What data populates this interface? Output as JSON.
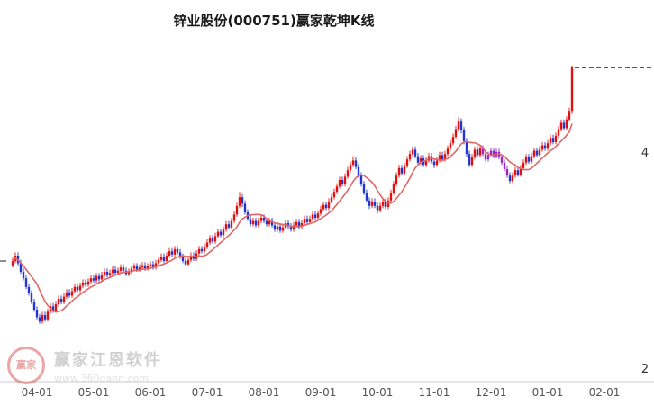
{
  "title": "锌业股份(000751)赢家乾坤K线",
  "watermark": {
    "brand": "赢家江恩软件",
    "url": "www.360gann.com",
    "logo_text": "赢家"
  },
  "colors": {
    "up": "#e01010",
    "down": "#2335cd",
    "purple": "#9428c4",
    "ma": "#e06666",
    "dashed": "#222222",
    "axis_text": "#555555",
    "axis_line": "#cccccc",
    "y_label_text": "#333333"
  },
  "chart_data": {
    "type": "candlestick",
    "stock_name": "锌业股份",
    "symbol": "000751",
    "title": "锌业股份(000751)赢家乾坤K线",
    "ylim": [
      2,
      4.9
    ],
    "price_per_unit_note": "right axis labels 4 and 2; left tick at 3",
    "left_tick_price": 3,
    "ma_period": 10,
    "purple_range": [
      174,
      183
    ],
    "x_labels": [
      "04-01",
      "05-01",
      "06-01",
      "07-01",
      "08-01",
      "09-01",
      "10-01",
      "11-01",
      "12-01",
      "01-01",
      "02-01"
    ],
    "month_start_days": [
      9,
      30,
      51,
      72,
      93,
      114,
      135,
      156,
      177,
      198,
      219
    ],
    "y_axis_labels": [
      {
        "text": "4",
        "price": 4
      },
      {
        "text": "2",
        "price": 2
      }
    ],
    "candles": [
      [
        2.96,
        3.0,
        2.94,
        3.03
      ],
      [
        3.0,
        3.05,
        2.98,
        3.08
      ],
      [
        3.05,
        2.98,
        2.96,
        3.08
      ],
      [
        2.98,
        2.9,
        2.88,
        3.01
      ],
      [
        2.9,
        2.84,
        2.82,
        2.93
      ],
      [
        2.84,
        2.76,
        2.74,
        2.87
      ],
      [
        2.76,
        2.7,
        2.68,
        2.79
      ],
      [
        2.7,
        2.62,
        2.6,
        2.73
      ],
      [
        2.62,
        2.55,
        2.53,
        2.65
      ],
      [
        2.55,
        2.48,
        2.46,
        2.58
      ],
      [
        2.48,
        2.44,
        2.42,
        2.51
      ],
      [
        2.44,
        2.5,
        2.42,
        2.53
      ],
      [
        2.5,
        2.46,
        2.44,
        2.53
      ],
      [
        2.46,
        2.53,
        2.44,
        2.56
      ],
      [
        2.53,
        2.58,
        2.51,
        2.61
      ],
      [
        2.58,
        2.54,
        2.52,
        2.61
      ],
      [
        2.54,
        2.6,
        2.52,
        2.63
      ],
      [
        2.6,
        2.65,
        2.58,
        2.68
      ],
      [
        2.65,
        2.62,
        2.6,
        2.68
      ],
      [
        2.62,
        2.67,
        2.6,
        2.7
      ],
      [
        2.67,
        2.71,
        2.65,
        2.74
      ],
      [
        2.71,
        2.68,
        2.66,
        2.74
      ],
      [
        2.68,
        2.72,
        2.66,
        2.75
      ],
      [
        2.72,
        2.76,
        2.7,
        2.79
      ],
      [
        2.76,
        2.73,
        2.71,
        2.79
      ],
      [
        2.73,
        2.77,
        2.71,
        2.8
      ],
      [
        2.77,
        2.8,
        2.75,
        2.83
      ],
      [
        2.8,
        2.78,
        2.76,
        2.83
      ],
      [
        2.78,
        2.81,
        2.76,
        2.84
      ],
      [
        2.81,
        2.84,
        2.79,
        2.87
      ],
      [
        2.84,
        2.82,
        2.8,
        2.87
      ],
      [
        2.82,
        2.86,
        2.8,
        2.89
      ],
      [
        2.86,
        2.83,
        2.81,
        2.89
      ],
      [
        2.83,
        2.87,
        2.81,
        2.9
      ],
      [
        2.87,
        2.9,
        2.85,
        2.93
      ],
      [
        2.9,
        2.87,
        2.85,
        2.93
      ],
      [
        2.87,
        2.89,
        2.85,
        2.92
      ],
      [
        2.89,
        2.92,
        2.87,
        2.95
      ],
      [
        2.92,
        2.89,
        2.87,
        2.95
      ],
      [
        2.89,
        2.91,
        2.87,
        2.94
      ],
      [
        2.91,
        2.94,
        2.89,
        2.97
      ],
      [
        2.94,
        2.91,
        2.89,
        2.97
      ],
      [
        2.91,
        2.88,
        2.86,
        2.94
      ],
      [
        2.88,
        2.9,
        2.86,
        2.93
      ],
      [
        2.9,
        2.93,
        2.88,
        2.96
      ],
      [
        2.93,
        2.95,
        2.91,
        2.98
      ],
      [
        2.95,
        2.92,
        2.9,
        2.98
      ],
      [
        2.92,
        2.94,
        2.9,
        2.97
      ],
      [
        2.94,
        2.96,
        2.92,
        2.99
      ],
      [
        2.96,
        2.93,
        2.91,
        2.99
      ],
      [
        2.93,
        2.95,
        2.91,
        2.98
      ],
      [
        2.95,
        2.97,
        2.93,
        3.0
      ],
      [
        2.97,
        2.94,
        2.92,
        3.0
      ],
      [
        2.94,
        2.98,
        2.92,
        3.01
      ],
      [
        2.98,
        3.01,
        2.96,
        3.04
      ],
      [
        3.01,
        3.04,
        2.99,
        3.07
      ],
      [
        3.04,
        3.0,
        2.98,
        3.07
      ],
      [
        3.0,
        3.05,
        2.98,
        3.08
      ],
      [
        3.05,
        3.09,
        3.03,
        3.12
      ],
      [
        3.09,
        3.06,
        3.04,
        3.12
      ],
      [
        3.06,
        3.11,
        3.04,
        3.14
      ],
      [
        3.11,
        3.08,
        3.06,
        3.14
      ],
      [
        3.08,
        3.04,
        3.02,
        3.11
      ],
      [
        3.04,
        3.0,
        2.98,
        3.07
      ],
      [
        3.0,
        2.97,
        2.95,
        3.03
      ],
      [
        2.97,
        3.01,
        2.95,
        3.04
      ],
      [
        3.01,
        3.05,
        2.99,
        3.08
      ],
      [
        3.05,
        3.02,
        3.0,
        3.08
      ],
      [
        3.02,
        3.07,
        3.0,
        3.1
      ],
      [
        3.07,
        3.11,
        3.05,
        3.14
      ],
      [
        3.11,
        3.09,
        3.07,
        3.14
      ],
      [
        3.09,
        3.13,
        3.07,
        3.16
      ],
      [
        3.13,
        3.17,
        3.11,
        3.2
      ],
      [
        3.17,
        3.21,
        3.15,
        3.24
      ],
      [
        3.21,
        3.18,
        3.16,
        3.24
      ],
      [
        3.18,
        3.23,
        3.16,
        3.26
      ],
      [
        3.23,
        3.27,
        3.21,
        3.3
      ],
      [
        3.27,
        3.24,
        3.22,
        3.3
      ],
      [
        3.24,
        3.29,
        3.22,
        3.32
      ],
      [
        3.29,
        3.34,
        3.27,
        3.37
      ],
      [
        3.34,
        3.31,
        3.29,
        3.37
      ],
      [
        3.31,
        3.37,
        3.29,
        3.4
      ],
      [
        3.37,
        3.43,
        3.35,
        3.46
      ],
      [
        3.43,
        3.51,
        3.41,
        3.54
      ],
      [
        3.51,
        3.59,
        3.49,
        3.64
      ],
      [
        3.59,
        3.53,
        3.5,
        3.62
      ],
      [
        3.53,
        3.45,
        3.43,
        3.56
      ],
      [
        3.45,
        3.39,
        3.37,
        3.48
      ],
      [
        3.39,
        3.34,
        3.32,
        3.42
      ],
      [
        3.34,
        3.37,
        3.32,
        3.4
      ],
      [
        3.37,
        3.33,
        3.31,
        3.4
      ],
      [
        3.33,
        3.37,
        3.31,
        3.4
      ],
      [
        3.37,
        3.4,
        3.35,
        3.43
      ],
      [
        3.4,
        3.37,
        3.35,
        3.43
      ],
      [
        3.37,
        3.34,
        3.32,
        3.4
      ],
      [
        3.34,
        3.37,
        3.32,
        3.4
      ],
      [
        3.37,
        3.33,
        3.31,
        3.4
      ],
      [
        3.33,
        3.29,
        3.27,
        3.36
      ],
      [
        3.29,
        3.32,
        3.27,
        3.35
      ],
      [
        3.32,
        3.28,
        3.26,
        3.35
      ],
      [
        3.28,
        3.31,
        3.26,
        3.34
      ],
      [
        3.31,
        3.35,
        3.29,
        3.38
      ],
      [
        3.35,
        3.32,
        3.3,
        3.38
      ],
      [
        3.32,
        3.29,
        3.27,
        3.35
      ],
      [
        3.29,
        3.33,
        3.27,
        3.36
      ],
      [
        3.33,
        3.36,
        3.31,
        3.39
      ],
      [
        3.36,
        3.32,
        3.3,
        3.39
      ],
      [
        3.32,
        3.35,
        3.3,
        3.38
      ],
      [
        3.35,
        3.39,
        3.33,
        3.42
      ],
      [
        3.39,
        3.36,
        3.34,
        3.42
      ],
      [
        3.36,
        3.39,
        3.34,
        3.42
      ],
      [
        3.39,
        3.43,
        3.37,
        3.46
      ],
      [
        3.43,
        3.4,
        3.38,
        3.46
      ],
      [
        3.4,
        3.44,
        3.38,
        3.47
      ],
      [
        3.44,
        3.48,
        3.42,
        3.51
      ],
      [
        3.48,
        3.52,
        3.46,
        3.55
      ],
      [
        3.52,
        3.49,
        3.47,
        3.55
      ],
      [
        3.49,
        3.55,
        3.47,
        3.58
      ],
      [
        3.55,
        3.59,
        3.53,
        3.62
      ],
      [
        3.59,
        3.64,
        3.57,
        3.67
      ],
      [
        3.64,
        3.69,
        3.62,
        3.72
      ],
      [
        3.69,
        3.75,
        3.67,
        3.78
      ],
      [
        3.75,
        3.71,
        3.69,
        3.78
      ],
      [
        3.71,
        3.78,
        3.69,
        3.81
      ],
      [
        3.78,
        3.84,
        3.76,
        3.87
      ],
      [
        3.84,
        3.89,
        3.82,
        3.92
      ],
      [
        3.89,
        3.93,
        3.87,
        3.97
      ],
      [
        3.93,
        3.87,
        3.85,
        3.96
      ],
      [
        3.87,
        3.79,
        3.77,
        3.9
      ],
      [
        3.79,
        3.71,
        3.69,
        3.82
      ],
      [
        3.71,
        3.63,
        3.61,
        3.74
      ],
      [
        3.63,
        3.56,
        3.54,
        3.66
      ],
      [
        3.56,
        3.51,
        3.48,
        3.59
      ],
      [
        3.51,
        3.55,
        3.49,
        3.58
      ],
      [
        3.55,
        3.51,
        3.49,
        3.58
      ],
      [
        3.51,
        3.47,
        3.44,
        3.54
      ],
      [
        3.47,
        3.51,
        3.45,
        3.54
      ],
      [
        3.51,
        3.55,
        3.49,
        3.58
      ],
      [
        3.55,
        3.5,
        3.48,
        3.58
      ],
      [
        3.5,
        3.56,
        3.48,
        3.59
      ],
      [
        3.56,
        3.63,
        3.54,
        3.66
      ],
      [
        3.63,
        3.71,
        3.61,
        3.74
      ],
      [
        3.71,
        3.79,
        3.69,
        3.82
      ],
      [
        3.79,
        3.86,
        3.77,
        3.89
      ],
      [
        3.86,
        3.81,
        3.79,
        3.89
      ],
      [
        3.81,
        3.88,
        3.79,
        3.91
      ],
      [
        3.88,
        3.94,
        3.86,
        3.97
      ],
      [
        3.94,
        3.99,
        3.92,
        4.02
      ],
      [
        3.99,
        4.03,
        3.97,
        4.06
      ],
      [
        4.03,
        3.97,
        3.95,
        4.06
      ],
      [
        3.97,
        3.91,
        3.89,
        4.0
      ],
      [
        3.91,
        3.95,
        3.89,
        3.98
      ],
      [
        3.95,
        3.89,
        3.87,
        3.98
      ],
      [
        3.89,
        3.93,
        3.87,
        3.96
      ],
      [
        3.93,
        3.97,
        3.91,
        4.0
      ],
      [
        3.97,
        3.92,
        3.9,
        4.0
      ],
      [
        3.92,
        3.89,
        3.86,
        3.95
      ],
      [
        3.89,
        3.93,
        3.87,
        3.96
      ],
      [
        3.93,
        3.98,
        3.91,
        4.01
      ],
      [
        3.98,
        3.94,
        3.92,
        4.01
      ],
      [
        3.94,
        3.99,
        3.92,
        4.02
      ],
      [
        3.99,
        4.04,
        3.97,
        4.07
      ],
      [
        4.04,
        4.09,
        4.02,
        4.12
      ],
      [
        4.09,
        4.15,
        4.07,
        4.18
      ],
      [
        4.15,
        4.22,
        4.13,
        4.25
      ],
      [
        4.22,
        4.29,
        4.2,
        4.33
      ],
      [
        4.29,
        4.21,
        4.18,
        4.32
      ],
      [
        4.21,
        4.11,
        4.08,
        4.24
      ],
      [
        4.11,
        3.99,
        3.96,
        4.14
      ],
      [
        3.99,
        3.89,
        3.87,
        4.02
      ],
      [
        3.89,
        3.96,
        3.87,
        3.99
      ],
      [
        3.96,
        4.03,
        3.94,
        4.06
      ],
      [
        4.03,
        3.98,
        3.96,
        4.06
      ],
      [
        3.98,
        4.04,
        3.96,
        4.07
      ],
      [
        4.04,
        3.99,
        3.97,
        4.07
      ],
      [
        3.99,
        3.94,
        3.92,
        4.02
      ],
      [
        3.94,
        3.98,
        3.92,
        4.01
      ],
      [
        3.98,
        4.02,
        3.96,
        4.05
      ],
      [
        4.02,
        3.97,
        3.95,
        4.05
      ],
      [
        3.97,
        4.01,
        3.95,
        4.04
      ],
      [
        4.01,
        3.96,
        3.94,
        4.04
      ],
      [
        3.96,
        3.91,
        3.89,
        3.99
      ],
      [
        3.91,
        3.85,
        3.83,
        3.94
      ],
      [
        3.85,
        3.79,
        3.77,
        3.88
      ],
      [
        3.79,
        3.74,
        3.72,
        3.82
      ],
      [
        3.74,
        3.79,
        3.72,
        3.82
      ],
      [
        3.79,
        3.84,
        3.77,
        3.87
      ],
      [
        3.84,
        3.8,
        3.78,
        3.87
      ],
      [
        3.8,
        3.86,
        3.78,
        3.89
      ],
      [
        3.86,
        3.91,
        3.84,
        3.94
      ],
      [
        3.91,
        3.96,
        3.89,
        3.99
      ],
      [
        3.96,
        3.92,
        3.9,
        3.99
      ],
      [
        3.92,
        3.97,
        3.9,
        4.0
      ],
      [
        3.97,
        4.02,
        3.95,
        4.05
      ],
      [
        4.02,
        3.98,
        3.96,
        4.05
      ],
      [
        3.98,
        4.03,
        3.96,
        4.06
      ],
      [
        4.03,
        4.07,
        4.01,
        4.1
      ],
      [
        4.07,
        4.04,
        4.02,
        4.1
      ],
      [
        4.04,
        4.09,
        4.02,
        4.12
      ],
      [
        4.09,
        4.14,
        4.07,
        4.17
      ],
      [
        4.14,
        4.1,
        4.08,
        4.17
      ],
      [
        4.1,
        4.16,
        4.08,
        4.19
      ],
      [
        4.16,
        4.22,
        4.14,
        4.25
      ],
      [
        4.22,
        4.28,
        4.2,
        4.31
      ],
      [
        4.28,
        4.23,
        4.21,
        4.31
      ],
      [
        4.23,
        4.31,
        4.21,
        4.34
      ],
      [
        4.31,
        4.39,
        4.29,
        4.42
      ],
      [
        4.39,
        4.79,
        4.36,
        4.81
      ]
    ]
  }
}
